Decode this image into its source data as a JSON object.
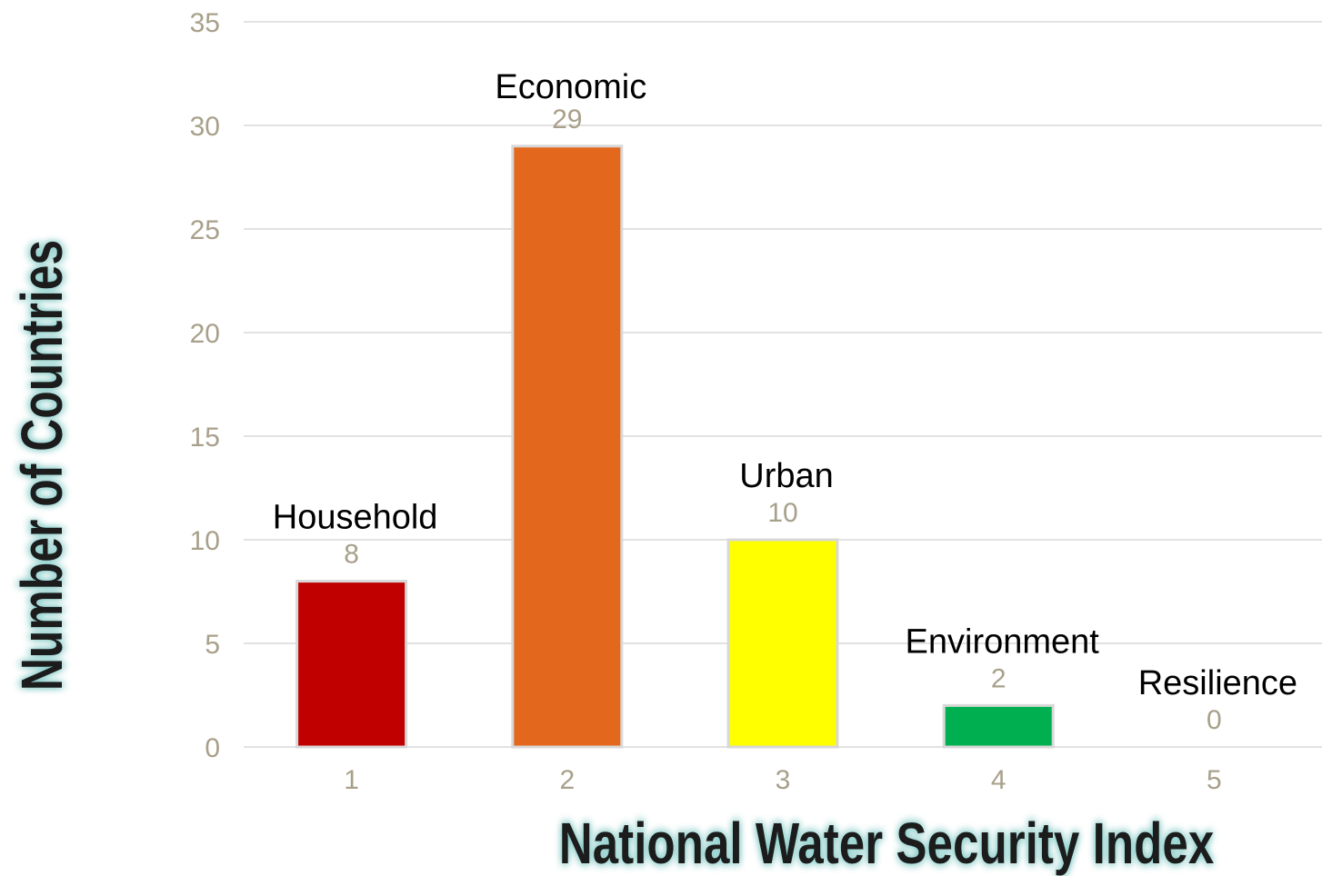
{
  "chart_data": {
    "type": "bar",
    "categories": [
      "1",
      "2",
      "3",
      "4",
      "5"
    ],
    "values": [
      8,
      29,
      10,
      2,
      0
    ],
    "bar_labels": [
      "Household",
      "Economic",
      "Urban",
      "Environment",
      "Resilience"
    ],
    "colors": [
      "#c00000",
      "#e3671c",
      "#ffff00",
      "#00b050",
      "#7f7f7f"
    ],
    "xlabel": "National Water Security Index",
    "ylabel": "Number of Countries",
    "ylim": [
      0,
      35
    ],
    "yticks": [
      0,
      5,
      10,
      15,
      20,
      25,
      30,
      35
    ],
    "grid": true,
    "legend": "none"
  }
}
